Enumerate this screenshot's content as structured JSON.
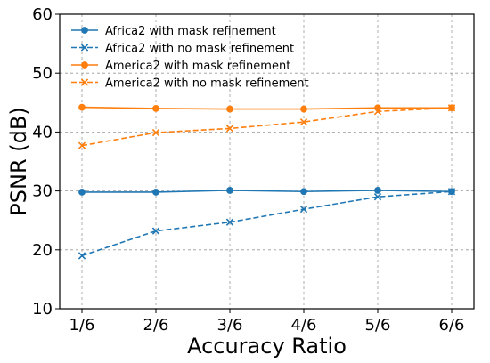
{
  "chart_data": {
    "type": "line",
    "title": "",
    "xlabel": "Accuracy Ratio",
    "ylabel": "PSNR (dB)",
    "categories": [
      "1/6",
      "2/6",
      "3/6",
      "4/6",
      "5/6",
      "6/6"
    ],
    "ylim": [
      10,
      60
    ],
    "yticks": [
      10,
      20,
      30,
      40,
      50,
      60
    ],
    "grid": true,
    "legend_position": "top-right",
    "series": [
      {
        "name": "Africa2 with mask refinement",
        "values": [
          29.8,
          29.8,
          30.1,
          29.9,
          30.1,
          29.9
        ],
        "color": "#1f77b4",
        "linestyle": "solid",
        "marker": "circle"
      },
      {
        "name": "Africa2 with no mask refinement",
        "values": [
          19.0,
          23.2,
          24.7,
          26.9,
          29.0,
          29.9
        ],
        "color": "#1f77b4",
        "linestyle": "dashed",
        "marker": "x"
      },
      {
        "name": "America2 with mask refinement",
        "values": [
          44.2,
          44.0,
          43.9,
          43.9,
          44.1,
          44.1
        ],
        "color": "#ff7f0e",
        "linestyle": "solid",
        "marker": "circle"
      },
      {
        "name": "America2 with no mask refinement",
        "values": [
          37.7,
          39.9,
          40.6,
          41.7,
          43.5,
          44.1
        ],
        "color": "#ff7f0e",
        "linestyle": "dashed",
        "marker": "x"
      }
    ]
  }
}
